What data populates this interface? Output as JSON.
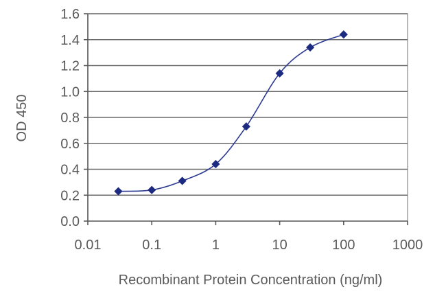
{
  "chart_data": {
    "type": "scatter",
    "title": "",
    "xlabel": "Recombinant Protein Concentration (ng/ml)",
    "ylabel": "OD 450",
    "x_scale": "log",
    "xlim": [
      0.01,
      1000
    ],
    "ylim": [
      0.0,
      1.6
    ],
    "x_ticks": [
      "0.01",
      "0.1",
      "1",
      "10",
      "100",
      "1000"
    ],
    "y_ticks": [
      "0.0",
      "0.2",
      "0.4",
      "0.6",
      "0.8",
      "1.0",
      "1.2",
      "1.4",
      "1.6"
    ],
    "grid": "horizontal",
    "legend": "none",
    "series": [
      {
        "x": [
          0.03,
          0.1,
          0.3,
          1,
          3,
          10,
          30,
          100
        ],
        "y": [
          0.23,
          0.24,
          0.31,
          0.44,
          0.73,
          1.14,
          1.34,
          1.44
        ],
        "fit_line": true,
        "color": "#2b3990"
      }
    ],
    "colors": {
      "marker": "#1c2a80",
      "line": "#2b3990",
      "grid": "#6a6a6a",
      "text": "#5a5a5a"
    }
  }
}
